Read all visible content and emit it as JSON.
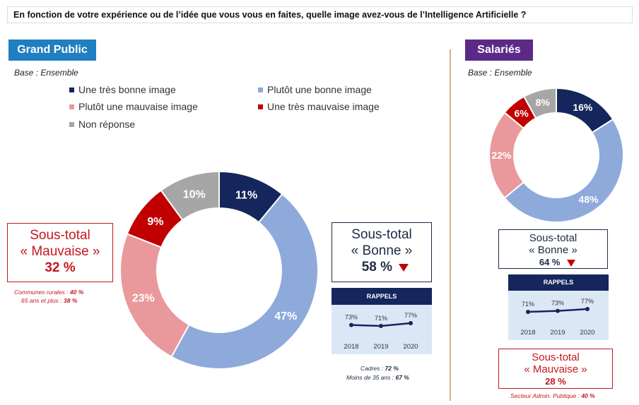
{
  "question": "En fonction de votre expérience ou de l’idée que vous vous en faites, quelle image avez-vous de l’Intelligence Artificielle ?",
  "colors": {
    "tres_bonne": "#14265c",
    "plutot_bonne": "#8eaadb",
    "plutot_mauvaise": "#e9999b",
    "tres_mauvaise": "#c00000",
    "non_reponse": "#a6a6a6",
    "down_arrow": "#c00000"
  },
  "legend": [
    {
      "label": "Une très bonne image"
    },
    {
      "label": "Plutôt une bonne image"
    },
    {
      "label": "Plutôt une mauvaise image"
    },
    {
      "label": "Une très mauvaise image"
    },
    {
      "label": "Non réponse"
    }
  ],
  "grand_public": {
    "title": "Grand Public",
    "base": "Base : Ensemble",
    "mauvaise": {
      "line1": "Sous-total",
      "line2": "« Mauvaise »",
      "value": "32 %"
    },
    "bonne": {
      "line1": "Sous-total",
      "line2": "« Bonne »",
      "value": "58 %",
      "trend_icon": "down-arrow"
    },
    "notes_mauvaise": [
      {
        "label": "Communes rurales : ",
        "value": "40 %"
      },
      {
        "label": "65 ans et plus : ",
        "value": "38 %"
      }
    ],
    "notes_bonne": [
      {
        "label": "Cadres : ",
        "value": "72 %"
      },
      {
        "label": "Moins de 35 ans : ",
        "value": "67 %"
      }
    ],
    "rappels": {
      "title": "RAPPELS"
    }
  },
  "salaries": {
    "title": "Salariés",
    "base": "Base :  Ensemble",
    "bonne": {
      "line1": "Sous-total",
      "line2": "« Bonne »",
      "value": "64 %",
      "trend_icon": "down-arrow"
    },
    "mauvaise": {
      "line1": "Sous-total",
      "line2": "« Mauvaise »",
      "value": "28 %"
    },
    "notes_mauvaise": [
      {
        "label": "Secteur Admin. Publique : ",
        "value": "40 %"
      }
    ],
    "rappels": {
      "title": "RAPPELS"
    }
  },
  "chart_data": [
    {
      "type": "pie",
      "title": "Grand Public",
      "categories": [
        "Une très bonne image",
        "Plutôt une bonne image",
        "Plutôt une mauvaise image",
        "Une très mauvaise image",
        "Non réponse"
      ],
      "values": [
        11,
        47,
        23,
        9,
        10
      ],
      "labels": [
        "11%",
        "47%",
        "23%",
        "9%",
        "10%"
      ],
      "donut": true
    },
    {
      "type": "line",
      "title": "RAPPELS",
      "x": [
        "2018",
        "2019",
        "2020"
      ],
      "values": [
        73,
        71,
        77
      ],
      "labels": [
        "73%",
        "71%",
        "77%"
      ]
    },
    {
      "type": "pie",
      "title": "Salariés",
      "categories": [
        "Une très bonne image",
        "Plutôt une bonne image",
        "Plutôt une mauvaise image",
        "Une très mauvaise image",
        "Non réponse"
      ],
      "values": [
        16,
        48,
        22,
        6,
        8
      ],
      "labels": [
        "16%",
        "48%",
        "22%",
        "6%",
        "8%"
      ],
      "donut": true
    },
    {
      "type": "line",
      "title": "RAPPELS",
      "x": [
        "2018",
        "2019",
        "2020"
      ],
      "values": [
        71,
        73,
        77
      ],
      "labels": [
        "71%",
        "73%",
        "77%"
      ]
    }
  ]
}
